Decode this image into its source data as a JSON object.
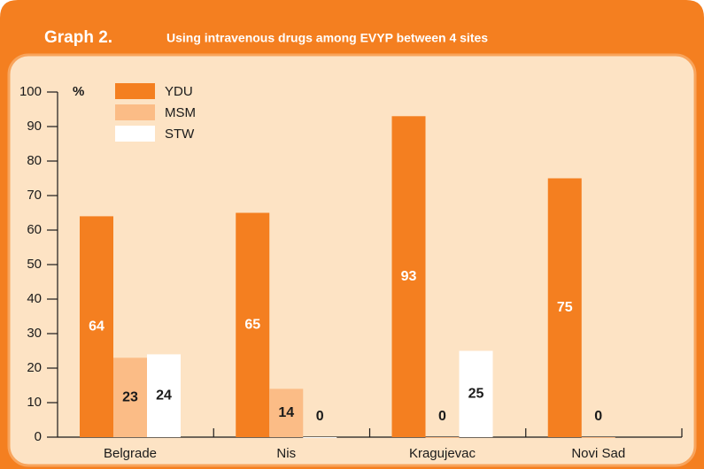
{
  "chart_data": {
    "type": "bar",
    "title": "Graph 2.",
    "subtitle": "Using intravenous drugs among EVYP between 4 sites",
    "y_label": "%",
    "categories": [
      "Belgrade",
      "Nis",
      "Kragujevac",
      "Novi Sad"
    ],
    "series": [
      {
        "name": "YDU",
        "color": "#f47f20",
        "values": [
          64,
          65,
          93,
          75
        ]
      },
      {
        "name": "MSM",
        "color": "#fbbc86",
        "values": [
          23,
          14,
          0,
          0
        ]
      },
      {
        "name": "STW",
        "color": "#ffffff",
        "values": [
          24,
          0,
          25,
          null
        ]
      }
    ],
    "ylim": [
      0,
      100
    ],
    "yticks": [
      0,
      10,
      20,
      30,
      40,
      50,
      60,
      70,
      80,
      90,
      100
    ],
    "legend": "top-left"
  }
}
